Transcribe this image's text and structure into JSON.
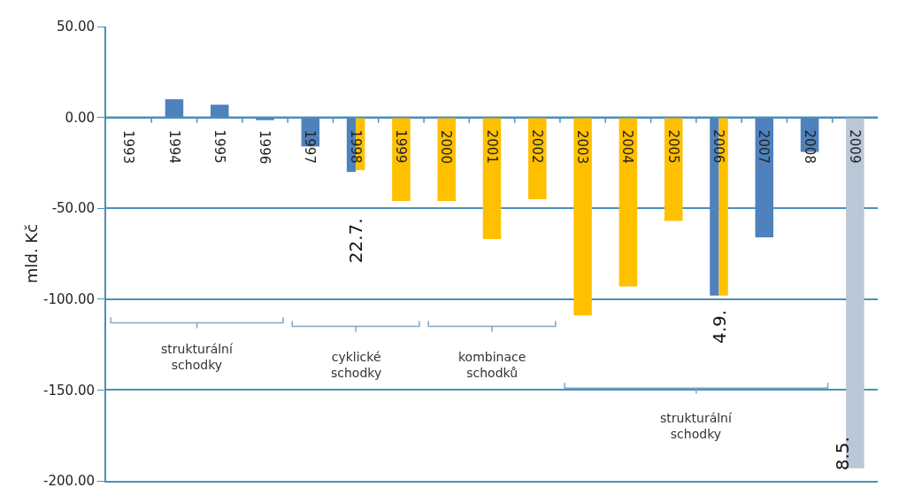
{
  "chart_data": {
    "type": "bar",
    "ylabel": "mld. Kč",
    "categories": [
      "1993",
      "1994",
      "1995",
      "1996",
      "1997",
      "1998",
      "1999",
      "2000",
      "2001",
      "2002",
      "2003",
      "2004",
      "2005",
      "2006",
      "2007",
      "2008",
      "2009"
    ],
    "series": [
      {
        "color": "#4f81bd",
        "values": [
          null,
          10,
          7,
          -1.5,
          -16,
          -30,
          null,
          null,
          null,
          null,
          null,
          null,
          null,
          -98,
          -66,
          -19,
          null
        ]
      },
      {
        "color": "#ffc000",
        "values": [
          null,
          null,
          null,
          null,
          null,
          -29,
          -46,
          -46,
          -67,
          -45,
          -109,
          -93,
          -57,
          -98,
          null,
          null,
          null
        ]
      },
      {
        "color": "#b9c7d6",
        "values": [
          null,
          null,
          null,
          null,
          null,
          null,
          null,
          null,
          null,
          null,
          null,
          null,
          null,
          null,
          null,
          null,
          -193
        ]
      }
    ],
    "ylim": [
      -200,
      50
    ],
    "yticks": [
      {
        "value": 50,
        "label": "50.00"
      },
      {
        "value": 0,
        "label": "0.00"
      },
      {
        "value": -50,
        "label": "-50.00"
      },
      {
        "value": -100,
        "label": "-100.00"
      },
      {
        "value": -150,
        "label": "-150.00"
      },
      {
        "value": -200,
        "label": "-200.00"
      }
    ],
    "grid": "y",
    "legend": false,
    "annotations": [
      "22.7.",
      "4.9.",
      "8.5.",
      "strukturální schodky",
      "cyklické schodky",
      "kombinace schodků",
      "strukturální schodky"
    ]
  }
}
